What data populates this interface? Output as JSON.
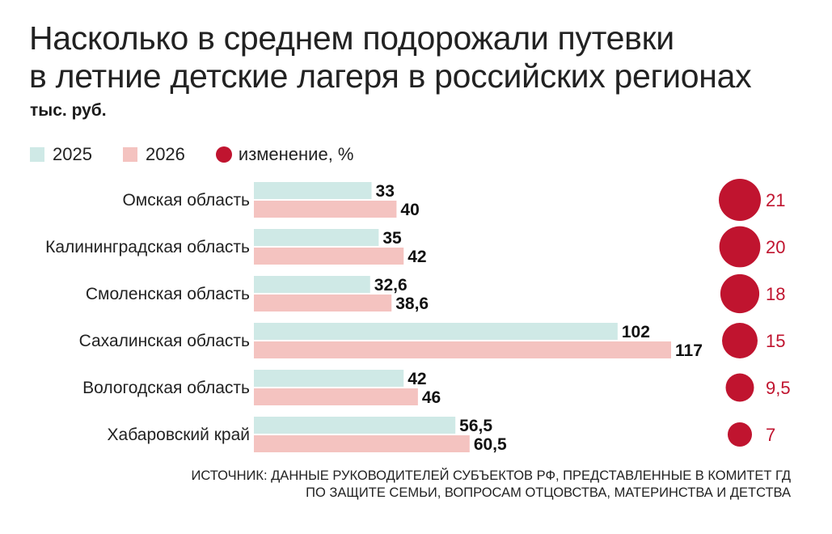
{
  "title_line1": "Насколько в среднем подорожали путевки",
  "title_line2": "в летние детские лагеря в российских регионах",
  "unit": "тыс. руб.",
  "legend": [
    {
      "label": "2025",
      "color": "#cfe9e6",
      "kind": "bar"
    },
    {
      "label": "2026",
      "color": "#f4c3c0",
      "kind": "bar"
    },
    {
      "label": "изменение, %",
      "color": "#c0142f",
      "kind": "dot"
    }
  ],
  "chart_data": {
    "type": "bar",
    "orientation": "horizontal",
    "categories": [
      "Омская область",
      "Калининградская область",
      "Смоленская область",
      "Сахалинская область",
      "Вологодская область",
      "Хабаровский край"
    ],
    "series": [
      {
        "name": "2025",
        "values": [
          33,
          35,
          32.6,
          102,
          42,
          56.5
        ],
        "labels": [
          "33",
          "35",
          "32,6",
          "102",
          "42",
          "56,5"
        ],
        "color": "#cfe9e6"
      },
      {
        "name": "2026",
        "values": [
          40,
          42,
          38.6,
          117,
          46,
          60.5
        ],
        "labels": [
          "40",
          "42",
          "38,6",
          "117",
          "46",
          "60,5"
        ],
        "color": "#f4c3c0"
      }
    ],
    "change": {
      "name": "изменение, %",
      "values": [
        21,
        20,
        18,
        15,
        9.5,
        7
      ],
      "labels": [
        "21",
        "20",
        "18",
        "15",
        "9,5",
        "7"
      ],
      "color": "#c0142f"
    },
    "xlim": [
      0,
      117
    ],
    "grid": false
  },
  "source_line1": "Источник: данные руководителей субъектов РФ, представленные в Комитет ГД",
  "source_line2": "по защите семьи, вопросам отцовства, материнства и детства"
}
